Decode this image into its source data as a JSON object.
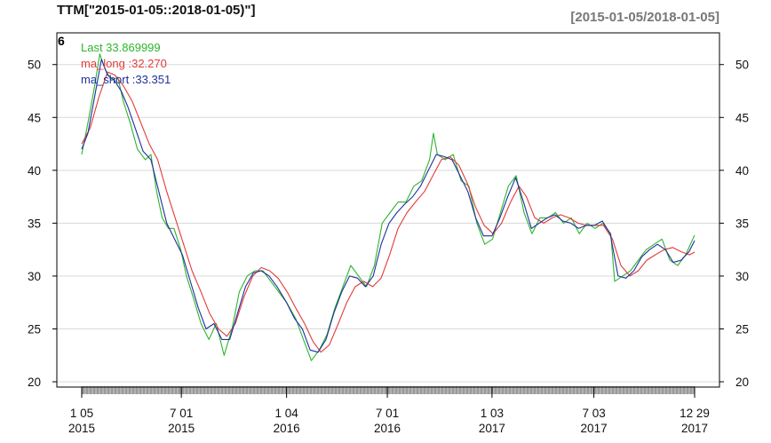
{
  "chart_data": {
    "type": "line",
    "title": "TTM[\"2015-01-05::2018-01-05)\"]",
    "date_range": "[2015-01-05/2018-01-05]",
    "corner_label": "6",
    "ylim": [
      19.5,
      53
    ],
    "y_ticks": [
      20,
      25,
      30,
      35,
      40,
      45,
      50
    ],
    "y_tick_labels": [
      "20",
      "25",
      "30",
      "35",
      "40",
      "45",
      "50"
    ],
    "x_ticks": [
      {
        "date": "2015-01-05",
        "line1": "1 05",
        "line2": "2015"
      },
      {
        "date": "2015-07-01",
        "line1": "7 01",
        "line2": "2015"
      },
      {
        "date": "2016-01-04",
        "line1": "1 04",
        "line2": "2016"
      },
      {
        "date": "2016-07-01",
        "line1": "7 01",
        "line2": "2016"
      },
      {
        "date": "2017-01-03",
        "line1": "1 03",
        "line2": "2017"
      },
      {
        "date": "2017-07-03",
        "line1": "7 03",
        "line2": "2017"
      },
      {
        "date": "2017-12-29",
        "line1": "12 29",
        "line2": "2017"
      }
    ],
    "x_start": "2015-01-05",
    "x_end": "2017-12-29",
    "grid": true,
    "legend_position": "top-left",
    "series": [
      {
        "key": "last",
        "legend_label": "Last 33.869999",
        "color": "#2db52d",
        "points": [
          [
            "2015-01-05",
            41.5
          ],
          [
            "2015-01-16",
            44.5
          ],
          [
            "2015-01-28",
            48.0
          ],
          [
            "2015-02-06",
            51.0
          ],
          [
            "2015-02-16",
            49.5
          ],
          [
            "2015-02-27",
            48.5
          ],
          [
            "2015-03-10",
            48.8
          ],
          [
            "2015-03-20",
            46.5
          ],
          [
            "2015-04-01",
            44.5
          ],
          [
            "2015-04-14",
            42.0
          ],
          [
            "2015-04-28",
            41.0
          ],
          [
            "2015-05-08",
            41.5
          ],
          [
            "2015-05-18",
            38.0
          ],
          [
            "2015-05-28",
            35.5
          ],
          [
            "2015-06-08",
            34.5
          ],
          [
            "2015-06-18",
            34.5
          ],
          [
            "2015-06-30",
            32.5
          ],
          [
            "2015-07-10",
            30.0
          ],
          [
            "2015-07-22",
            28.0
          ],
          [
            "2015-08-05",
            25.5
          ],
          [
            "2015-08-19",
            24.0
          ],
          [
            "2015-09-01",
            25.5
          ],
          [
            "2015-09-15",
            22.5
          ],
          [
            "2015-09-29",
            25.0
          ],
          [
            "2015-10-12",
            28.5
          ],
          [
            "2015-10-26",
            30.0
          ],
          [
            "2015-11-09",
            30.5
          ],
          [
            "2015-11-23",
            30.5
          ],
          [
            "2015-12-07",
            29.5
          ],
          [
            "2015-12-21",
            28.5
          ],
          [
            "2016-01-04",
            27.5
          ],
          [
            "2016-01-20",
            26.0
          ],
          [
            "2016-02-03",
            24.0
          ],
          [
            "2016-02-17",
            22.0
          ],
          [
            "2016-03-02",
            23.0
          ],
          [
            "2016-03-16",
            24.5
          ],
          [
            "2016-03-30",
            27.0
          ],
          [
            "2016-04-13",
            29.0
          ],
          [
            "2016-04-27",
            31.0
          ],
          [
            "2016-05-11",
            30.0
          ],
          [
            "2016-05-25",
            29.0
          ],
          [
            "2016-06-08",
            31.0
          ],
          [
            "2016-06-22",
            35.0
          ],
          [
            "2016-07-06",
            36.0
          ],
          [
            "2016-07-20",
            37.0
          ],
          [
            "2016-08-03",
            37.0
          ],
          [
            "2016-08-17",
            38.5
          ],
          [
            "2016-08-31",
            39.0
          ],
          [
            "2016-09-14",
            41.0
          ],
          [
            "2016-09-21",
            43.5
          ],
          [
            "2016-09-28",
            41.5
          ],
          [
            "2016-10-12",
            41.0
          ],
          [
            "2016-10-26",
            41.5
          ],
          [
            "2016-11-09",
            39.0
          ],
          [
            "2016-11-23",
            38.5
          ],
          [
            "2016-12-07",
            35.0
          ],
          [
            "2016-12-21",
            33.0
          ],
          [
            "2017-01-04",
            33.5
          ],
          [
            "2017-01-18",
            36.0
          ],
          [
            "2017-02-01",
            38.5
          ],
          [
            "2017-02-15",
            39.5
          ],
          [
            "2017-03-01",
            36.0
          ],
          [
            "2017-03-15",
            34.0
          ],
          [
            "2017-03-29",
            35.5
          ],
          [
            "2017-04-12",
            35.5
          ],
          [
            "2017-04-26",
            36.0
          ],
          [
            "2017-05-10",
            35.0
          ],
          [
            "2017-05-24",
            35.5
          ],
          [
            "2017-06-07",
            34.0
          ],
          [
            "2017-06-21",
            35.0
          ],
          [
            "2017-07-05",
            34.5
          ],
          [
            "2017-07-19",
            35.0
          ],
          [
            "2017-08-02",
            34.0
          ],
          [
            "2017-08-09",
            29.5
          ],
          [
            "2017-08-23",
            30.0
          ],
          [
            "2017-09-06",
            30.5
          ],
          [
            "2017-09-20",
            31.5
          ],
          [
            "2017-10-04",
            32.5
          ],
          [
            "2017-10-18",
            33.0
          ],
          [
            "2017-11-01",
            33.5
          ],
          [
            "2017-11-15",
            31.5
          ],
          [
            "2017-11-29",
            31.0
          ],
          [
            "2017-12-13",
            32.0
          ],
          [
            "2017-12-29",
            33.87
          ]
        ]
      },
      {
        "key": "ma_long",
        "legend_label": "ma_long :32.270",
        "color": "#e23a3a",
        "points": [
          [
            "2015-01-05",
            42.5
          ],
          [
            "2015-01-20",
            44.0
          ],
          [
            "2015-02-05",
            47.0
          ],
          [
            "2015-02-20",
            49.3
          ],
          [
            "2015-03-05",
            49.0
          ],
          [
            "2015-03-20",
            48.0
          ],
          [
            "2015-04-05",
            46.5
          ],
          [
            "2015-04-20",
            44.5
          ],
          [
            "2015-05-05",
            42.5
          ],
          [
            "2015-05-20",
            41.0
          ],
          [
            "2015-06-05",
            38.0
          ],
          [
            "2015-06-20",
            35.5
          ],
          [
            "2015-07-05",
            33.0
          ],
          [
            "2015-07-20",
            30.5
          ],
          [
            "2015-08-05",
            28.5
          ],
          [
            "2015-08-20",
            26.5
          ],
          [
            "2015-09-05",
            25.0
          ],
          [
            "2015-09-20",
            24.3
          ],
          [
            "2015-10-05",
            25.5
          ],
          [
            "2015-10-20",
            28.0
          ],
          [
            "2015-11-05",
            30.0
          ],
          [
            "2015-11-20",
            30.8
          ],
          [
            "2015-12-05",
            30.5
          ],
          [
            "2015-12-20",
            29.8
          ],
          [
            "2016-01-05",
            28.5
          ],
          [
            "2016-01-20",
            27.0
          ],
          [
            "2016-02-05",
            25.5
          ],
          [
            "2016-02-20",
            23.8
          ],
          [
            "2016-03-05",
            22.8
          ],
          [
            "2016-03-20",
            23.5
          ],
          [
            "2016-04-05",
            25.5
          ],
          [
            "2016-04-20",
            27.5
          ],
          [
            "2016-05-05",
            29.0
          ],
          [
            "2016-05-20",
            29.5
          ],
          [
            "2016-06-05",
            29.0
          ],
          [
            "2016-06-20",
            29.8
          ],
          [
            "2016-07-05",
            32.0
          ],
          [
            "2016-07-20",
            34.5
          ],
          [
            "2016-08-05",
            36.0
          ],
          [
            "2016-08-20",
            37.0
          ],
          [
            "2016-09-05",
            38.0
          ],
          [
            "2016-09-20",
            39.5
          ],
          [
            "2016-10-05",
            41.0
          ],
          [
            "2016-10-20",
            41.3
          ],
          [
            "2016-11-05",
            40.5
          ],
          [
            "2016-11-20",
            38.8
          ],
          [
            "2016-12-05",
            36.5
          ],
          [
            "2016-12-20",
            34.8
          ],
          [
            "2017-01-05",
            34.0
          ],
          [
            "2017-01-20",
            35.0
          ],
          [
            "2017-02-05",
            37.0
          ],
          [
            "2017-02-20",
            38.5
          ],
          [
            "2017-03-05",
            37.5
          ],
          [
            "2017-03-20",
            35.5
          ],
          [
            "2017-04-05",
            35.0
          ],
          [
            "2017-04-20",
            35.5
          ],
          [
            "2017-05-05",
            35.8
          ],
          [
            "2017-05-20",
            35.5
          ],
          [
            "2017-06-05",
            35.0
          ],
          [
            "2017-06-20",
            34.8
          ],
          [
            "2017-07-05",
            34.8
          ],
          [
            "2017-07-20",
            34.8
          ],
          [
            "2017-08-05",
            33.5
          ],
          [
            "2017-08-20",
            31.0
          ],
          [
            "2017-09-05",
            30.0
          ],
          [
            "2017-09-20",
            30.5
          ],
          [
            "2017-10-05",
            31.5
          ],
          [
            "2017-10-20",
            32.0
          ],
          [
            "2017-11-05",
            32.5
          ],
          [
            "2017-11-20",
            32.7
          ],
          [
            "2017-12-05",
            32.3
          ],
          [
            "2017-12-20",
            32.0
          ],
          [
            "2017-12-29",
            32.27
          ]
        ]
      },
      {
        "key": "ma_short",
        "legend_label": "ma_short :33.351",
        "color": "#1f2f9e",
        "points": [
          [
            "2015-01-05",
            42.0
          ],
          [
            "2015-01-16",
            43.5
          ],
          [
            "2015-01-28",
            47.0
          ],
          [
            "2015-02-09",
            50.5
          ],
          [
            "2015-02-20",
            49.0
          ],
          [
            "2015-03-04",
            48.5
          ],
          [
            "2015-03-16",
            47.5
          ],
          [
            "2015-03-28",
            46.0
          ],
          [
            "2015-04-10",
            44.0
          ],
          [
            "2015-04-24",
            41.8
          ],
          [
            "2015-05-08",
            41.0
          ],
          [
            "2015-05-22",
            38.0
          ],
          [
            "2015-06-05",
            35.0
          ],
          [
            "2015-06-19",
            33.5
          ],
          [
            "2015-07-03",
            32.0
          ],
          [
            "2015-07-17",
            29.5
          ],
          [
            "2015-07-31",
            27.0
          ],
          [
            "2015-08-14",
            25.0
          ],
          [
            "2015-08-28",
            25.5
          ],
          [
            "2015-09-11",
            24.0
          ],
          [
            "2015-09-25",
            24.0
          ],
          [
            "2015-10-09",
            26.5
          ],
          [
            "2015-10-23",
            29.0
          ],
          [
            "2015-11-06",
            30.3
          ],
          [
            "2015-11-20",
            30.5
          ],
          [
            "2015-12-04",
            30.0
          ],
          [
            "2015-12-18",
            29.0
          ],
          [
            "2016-01-04",
            27.5
          ],
          [
            "2016-01-18",
            26.0
          ],
          [
            "2016-02-01",
            25.0
          ],
          [
            "2016-02-15",
            23.0
          ],
          [
            "2016-02-29",
            22.8
          ],
          [
            "2016-03-14",
            24.0
          ],
          [
            "2016-03-28",
            26.5
          ],
          [
            "2016-04-11",
            28.5
          ],
          [
            "2016-04-25",
            30.0
          ],
          [
            "2016-05-09",
            29.8
          ],
          [
            "2016-05-23",
            29.0
          ],
          [
            "2016-06-06",
            30.0
          ],
          [
            "2016-06-20",
            33.0
          ],
          [
            "2016-07-04",
            35.0
          ],
          [
            "2016-07-18",
            36.0
          ],
          [
            "2016-08-01",
            36.8
          ],
          [
            "2016-08-15",
            37.5
          ],
          [
            "2016-08-29",
            38.5
          ],
          [
            "2016-09-12",
            40.0
          ],
          [
            "2016-09-26",
            41.5
          ],
          [
            "2016-10-10",
            41.3
          ],
          [
            "2016-10-24",
            41.0
          ],
          [
            "2016-11-07",
            39.5
          ],
          [
            "2016-11-21",
            38.0
          ],
          [
            "2016-12-05",
            35.5
          ],
          [
            "2016-12-19",
            33.8
          ],
          [
            "2017-01-03",
            33.8
          ],
          [
            "2017-01-17",
            35.5
          ],
          [
            "2017-01-31",
            37.5
          ],
          [
            "2017-02-14",
            39.3
          ],
          [
            "2017-02-28",
            37.0
          ],
          [
            "2017-03-14",
            34.5
          ],
          [
            "2017-03-28",
            35.0
          ],
          [
            "2017-04-11",
            35.5
          ],
          [
            "2017-04-25",
            35.8
          ],
          [
            "2017-05-09",
            35.2
          ],
          [
            "2017-05-23",
            35.0
          ],
          [
            "2017-06-06",
            34.5
          ],
          [
            "2017-06-20",
            34.8
          ],
          [
            "2017-07-04",
            34.8
          ],
          [
            "2017-07-18",
            35.2
          ],
          [
            "2017-08-01",
            34.0
          ],
          [
            "2017-08-15",
            30.0
          ],
          [
            "2017-08-29",
            29.8
          ],
          [
            "2017-09-12",
            30.5
          ],
          [
            "2017-09-26",
            31.8
          ],
          [
            "2017-10-10",
            32.5
          ],
          [
            "2017-10-24",
            33.0
          ],
          [
            "2017-11-07",
            32.5
          ],
          [
            "2017-11-21",
            31.3
          ],
          [
            "2017-12-05",
            31.5
          ],
          [
            "2017-12-19",
            32.3
          ],
          [
            "2017-12-29",
            33.35
          ]
        ]
      }
    ]
  }
}
